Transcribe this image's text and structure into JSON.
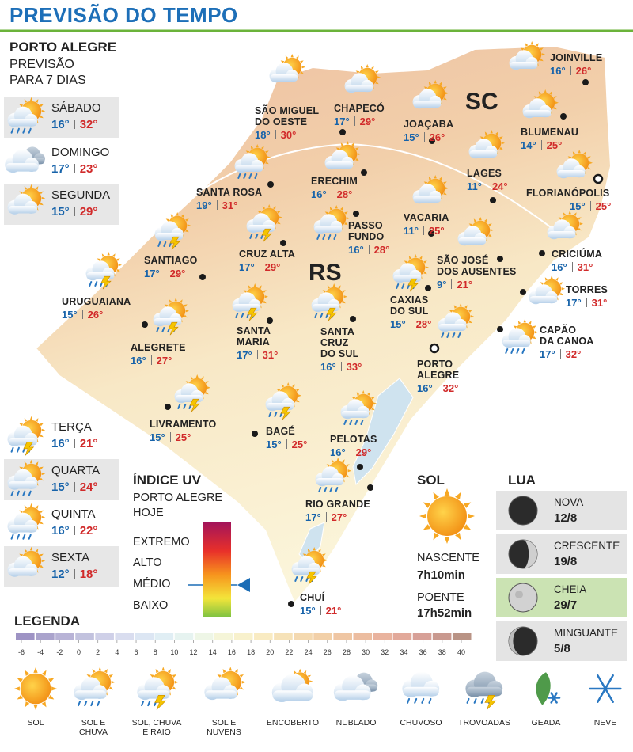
{
  "header": {
    "title": "PREVISÃO DO TEMPO"
  },
  "forecast": {
    "city": "PORTO ALEGRE",
    "subtitle": "PREVISÃO\nPARA 7 DIAS",
    "days": [
      {
        "day": "SÁBADO",
        "min": "16°",
        "max": "32°"
      },
      {
        "day": "DOMINGO",
        "min": "17°",
        "max": "23°"
      },
      {
        "day": "SEGUNDA",
        "min": "15°",
        "max": "29°"
      },
      {
        "day": "TERÇA",
        "min": "16°",
        "max": "21°"
      },
      {
        "day": "QUARTA",
        "min": "15°",
        "max": "24°"
      },
      {
        "day": "QUINTA",
        "min": "16°",
        "max": "22°"
      },
      {
        "day": "SEXTA",
        "min": "12°",
        "max": "18°"
      }
    ]
  },
  "map": {
    "regions": [
      "SC",
      "RS"
    ],
    "cities": [
      {
        "name": "SÃO MIGUEL\nDO OESTE",
        "min": "18°",
        "max": "30°"
      },
      {
        "name": "CHAPECÓ",
        "min": "17°",
        "max": "29°"
      },
      {
        "name": "JOAÇABA",
        "min": "15°",
        "max": "26°"
      },
      {
        "name": "JOINVILLE",
        "min": "16°",
        "max": "26°"
      },
      {
        "name": "BLUMENAU",
        "min": "14°",
        "max": "25°"
      },
      {
        "name": "LAGES",
        "min": "11°",
        "max": "24°"
      },
      {
        "name": "FLORIANÓPOLIS",
        "min": "15°",
        "max": "25°"
      },
      {
        "name": "ERECHIM",
        "min": "16°",
        "max": "28°"
      },
      {
        "name": "SANTA ROSA",
        "min": "19°",
        "max": "31°"
      },
      {
        "name": "VACARIA",
        "min": "11°",
        "max": "25°"
      },
      {
        "name": "PASSO\nFUNDO",
        "min": "16°",
        "max": "28°"
      },
      {
        "name": "CRUZ ALTA",
        "min": "17°",
        "max": "29°"
      },
      {
        "name": "SANTIAGO",
        "min": "17°",
        "max": "29°"
      },
      {
        "name": "SÃO JOSÉ\nDOS AUSENTES",
        "min": "9°",
        "max": "21°"
      },
      {
        "name": "CRICIÚMA",
        "min": "16°",
        "max": "31°"
      },
      {
        "name": "TORRES",
        "min": "17°",
        "max": "31°"
      },
      {
        "name": "URUGUAIANA",
        "min": "15°",
        "max": "26°"
      },
      {
        "name": "ALEGRETE",
        "min": "16°",
        "max": "27°"
      },
      {
        "name": "SANTA\nMARIA",
        "min": "17°",
        "max": "31°"
      },
      {
        "name": "SANTA\nCRUZ\nDO SUL",
        "min": "16°",
        "max": "33°"
      },
      {
        "name": "CAXIAS\nDO SUL",
        "min": "15°",
        "max": "28°"
      },
      {
        "name": "CAPÃO\nDA CANOA",
        "min": "17°",
        "max": "32°"
      },
      {
        "name": "PORTO\nALEGRE",
        "min": "16°",
        "max": "32°"
      },
      {
        "name": "LIVRAMENTO",
        "min": "15°",
        "max": "25°"
      },
      {
        "name": "BAGÉ",
        "min": "15°",
        "max": "25°"
      },
      {
        "name": "PELOTAS",
        "min": "16°",
        "max": "29°"
      },
      {
        "name": "RIO GRANDE",
        "min": "17°",
        "max": "27°"
      },
      {
        "name": "CHUÍ",
        "min": "15°",
        "max": "21°"
      }
    ]
  },
  "uv": {
    "title": "ÍNDICE UV",
    "subtitle": "PORTO ALEGRE\nHOJE",
    "levels": [
      "EXTREMO",
      "ALTO",
      "MÉDIO",
      "BAIXO"
    ]
  },
  "sun": {
    "title": "SOL",
    "sunrise_label": "NASCENTE",
    "sunrise": "7h10min",
    "sunset_label": "POENTE",
    "sunset": "17h52min"
  },
  "moon": {
    "title": "LUA",
    "phases": [
      {
        "name": "NOVA",
        "date": "12/8"
      },
      {
        "name": "CRESCENTE",
        "date": "19/8"
      },
      {
        "name": "CHEIA",
        "date": "29/7"
      },
      {
        "name": "MINGUANTE",
        "date": "5/8"
      }
    ]
  },
  "legend": {
    "title": "LEGENDA",
    "ticks": [
      -6,
      -4,
      -2,
      0,
      2,
      4,
      6,
      8,
      10,
      12,
      14,
      16,
      18,
      20,
      22,
      24,
      26,
      28,
      30,
      32,
      34,
      36,
      38,
      40
    ],
    "colors": [
      "#9e93c4",
      "#aaa3cc",
      "#b8b3d6",
      "#c2c2de",
      "#cfd0e8",
      "#d9ddef",
      "#dce6f3",
      "#e0eef4",
      "#e6f3f0",
      "#eef6e6",
      "#f5f5d8",
      "#f8f1cc",
      "#f9ebc2",
      "#f6e2b8",
      "#f4d9b0",
      "#f2d0a8",
      "#efc6a3",
      "#ecbda0",
      "#e9b39e",
      "#e2a99a",
      "#d7a097",
      "#c9998f",
      "#b99385"
    ],
    "icons": [
      "SOL",
      "SOL E\nCHUVA",
      "SOL, CHUVA\nE RAIO",
      "SOL E\nNUVENS",
      "ENCOBERTO",
      "NUBLADO",
      "CHUVOSO",
      "TROVOADAS",
      "GEADA",
      "NEVE"
    ]
  }
}
